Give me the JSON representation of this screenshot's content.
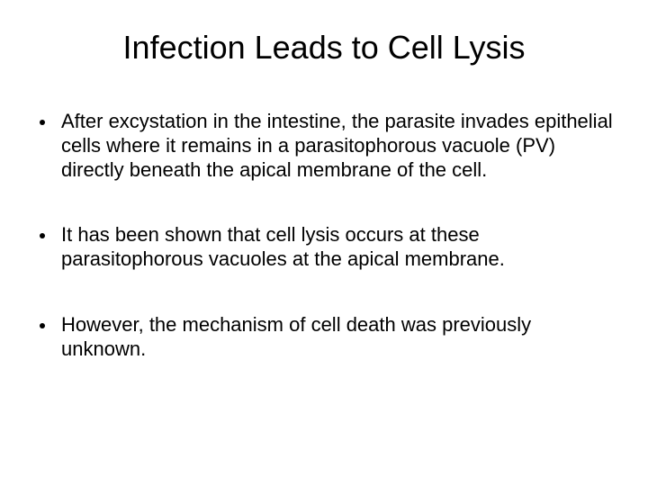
{
  "slide": {
    "title": "Infection Leads to Cell Lysis",
    "title_fontsize": 36,
    "title_color": "#000000",
    "background_color": "#ffffff",
    "body_fontsize": 22,
    "body_color": "#000000",
    "bullet_color": "#000000",
    "bullets": [
      {
        "text": "After excystation in the intestine, the parasite invades epithelial cells where it remains in a parasitophorous vacuole (PV) directly beneath the apical membrane of the cell."
      },
      {
        "text": "It has been shown that cell lysis occurs at these parasitophorous vacuoles at the apical membrane."
      },
      {
        "text": "However, the mechanism of cell death was previously unknown."
      }
    ]
  }
}
